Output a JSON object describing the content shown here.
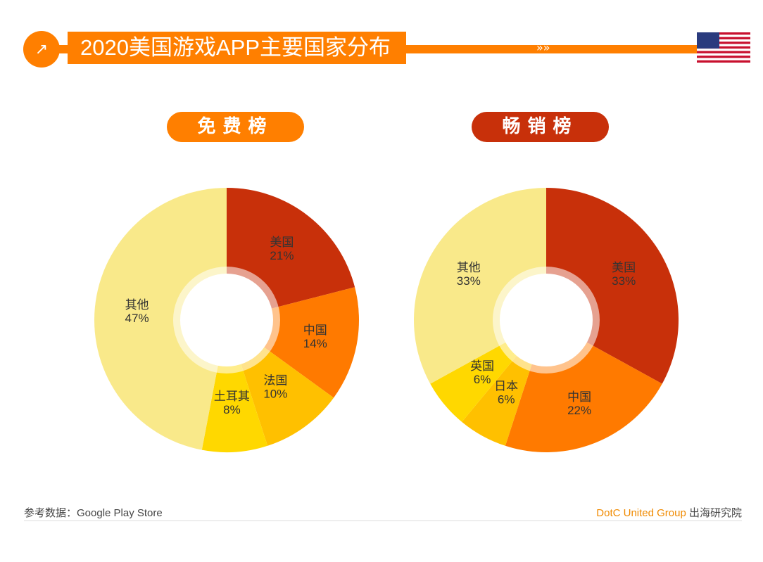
{
  "header": {
    "title": "2020美国游戏APP主要国家分布",
    "arrows": "»»",
    "icon": "external-link-icon",
    "flag": "us-flag"
  },
  "colors": {
    "accent": "#ff7f00",
    "dark_red": "#c8300a"
  },
  "chart_data": [
    {
      "type": "pie",
      "title": "免费榜",
      "donut": true,
      "categories": [
        "美国",
        "中国",
        "法国",
        "土耳其",
        "其他"
      ],
      "values": [
        21,
        14,
        10,
        8,
        47
      ],
      "labels": [
        "21%",
        "14%",
        "10%",
        "8%",
        "47%"
      ],
      "colors": [
        "#c8300a",
        "#ff7a00",
        "#ffc000",
        "#ffd800",
        "#f9e98a"
      ]
    },
    {
      "type": "pie",
      "title": "畅销榜",
      "donut": true,
      "categories": [
        "美国",
        "中国",
        "日本",
        "英国",
        "其他"
      ],
      "values": [
        33,
        22,
        6,
        6,
        33
      ],
      "labels": [
        "33%",
        "22%",
        "6%",
        "6%",
        "33%"
      ],
      "colors": [
        "#c8300a",
        "#ff7a00",
        "#ffc000",
        "#ffd800",
        "#f9e98a"
      ]
    }
  ],
  "footer": {
    "source": "参考数据：Google Play Store",
    "brand": "DotC United Group",
    "brand_suffix": " 出海研究院"
  }
}
